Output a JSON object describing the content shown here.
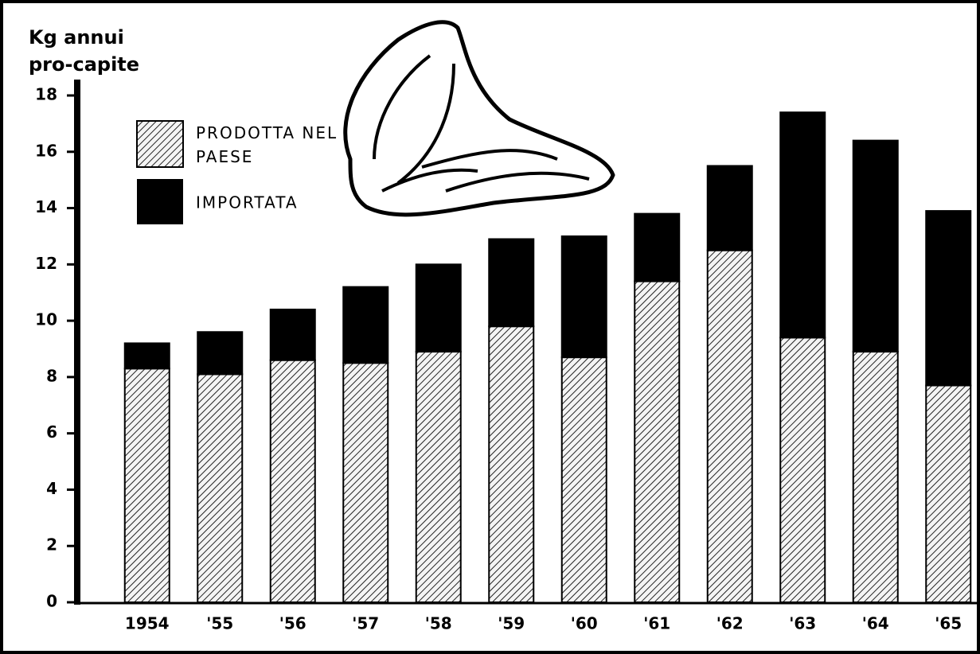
{
  "chart_data": {
    "type": "stacked_bar",
    "y_label": [
      "Kg annui",
      "pro-capite"
    ],
    "categories": [
      "1954",
      "'55",
      "'56",
      "'57",
      "'58",
      "'59",
      "'60",
      "'61",
      "'62",
      "'63",
      "'64",
      "'65"
    ],
    "series": [
      {
        "name": "PRODOTTA NEL PAESE",
        "color": "#000000",
        "hatch": true,
        "values": [
          8.3,
          8.1,
          8.6,
          8.5,
          8.9,
          9.8,
          8.7,
          11.4,
          12.5,
          9.4,
          8.9,
          7.7
        ]
      },
      {
        "name": "IMPORTATA",
        "color": "#000000",
        "hatch": false,
        "values": [
          0.9,
          1.5,
          1.8,
          2.7,
          3.1,
          3.1,
          4.3,
          2.4,
          3.0,
          8.0,
          7.5,
          6.2
        ]
      }
    ],
    "ylim": [
      0,
      18
    ],
    "yticks": [
      0,
      2,
      4,
      6,
      8,
      10,
      12,
      14,
      16,
      18
    ],
    "grid": false
  }
}
